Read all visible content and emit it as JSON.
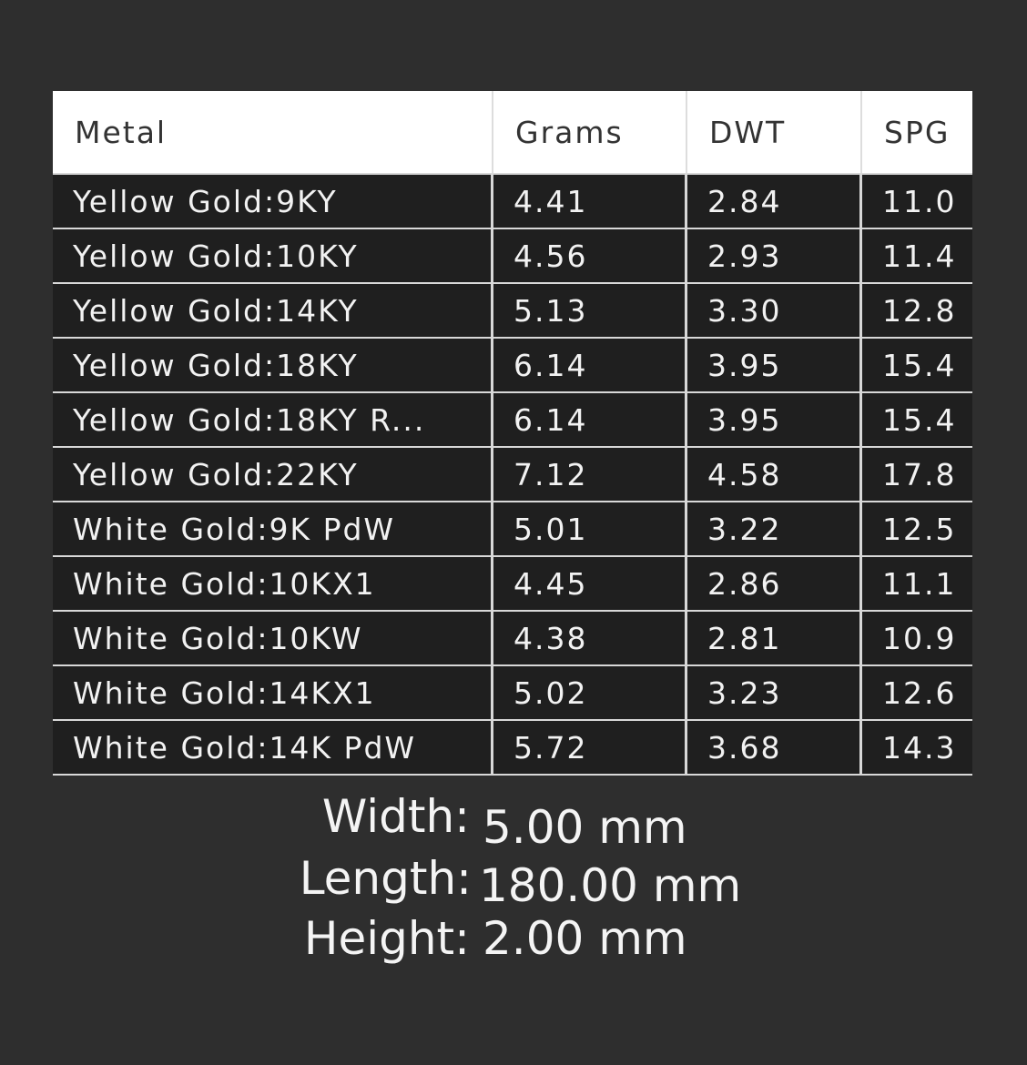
{
  "table": {
    "headers": [
      "Metal",
      "Grams",
      "DWT",
      "SPG"
    ],
    "rows": [
      [
        "Yellow Gold:9KY",
        "4.41",
        "2.84",
        "11.0"
      ],
      [
        "Yellow Gold:10KY",
        "4.56",
        "2.93",
        "11.4"
      ],
      [
        "Yellow Gold:14KY",
        "5.13",
        "3.30",
        "12.8"
      ],
      [
        "Yellow Gold:18KY",
        "6.14",
        "3.95",
        "15.4"
      ],
      [
        "Yellow Gold:18KY R...",
        "6.14",
        "3.95",
        "15.4"
      ],
      [
        "Yellow Gold:22KY",
        "7.12",
        "4.58",
        "17.8"
      ],
      [
        "White Gold:9K PdW",
        "5.01",
        "3.22",
        "12.5"
      ],
      [
        "White Gold:10KX1",
        "4.45",
        "2.86",
        "11.1"
      ],
      [
        "White Gold:10KW",
        "4.38",
        "2.81",
        "10.9"
      ],
      [
        "White Gold:14KX1",
        "5.02",
        "3.23",
        "12.6"
      ],
      [
        "White Gold:14K PdW",
        "5.72",
        "3.68",
        "14.3"
      ]
    ]
  },
  "dimensions": [
    {
      "label": "Width:",
      "value": "5.00 mm"
    },
    {
      "label": "Length:",
      "value": "180.00 mm"
    },
    {
      "label": "Height:",
      "value": "2.00 mm"
    }
  ]
}
